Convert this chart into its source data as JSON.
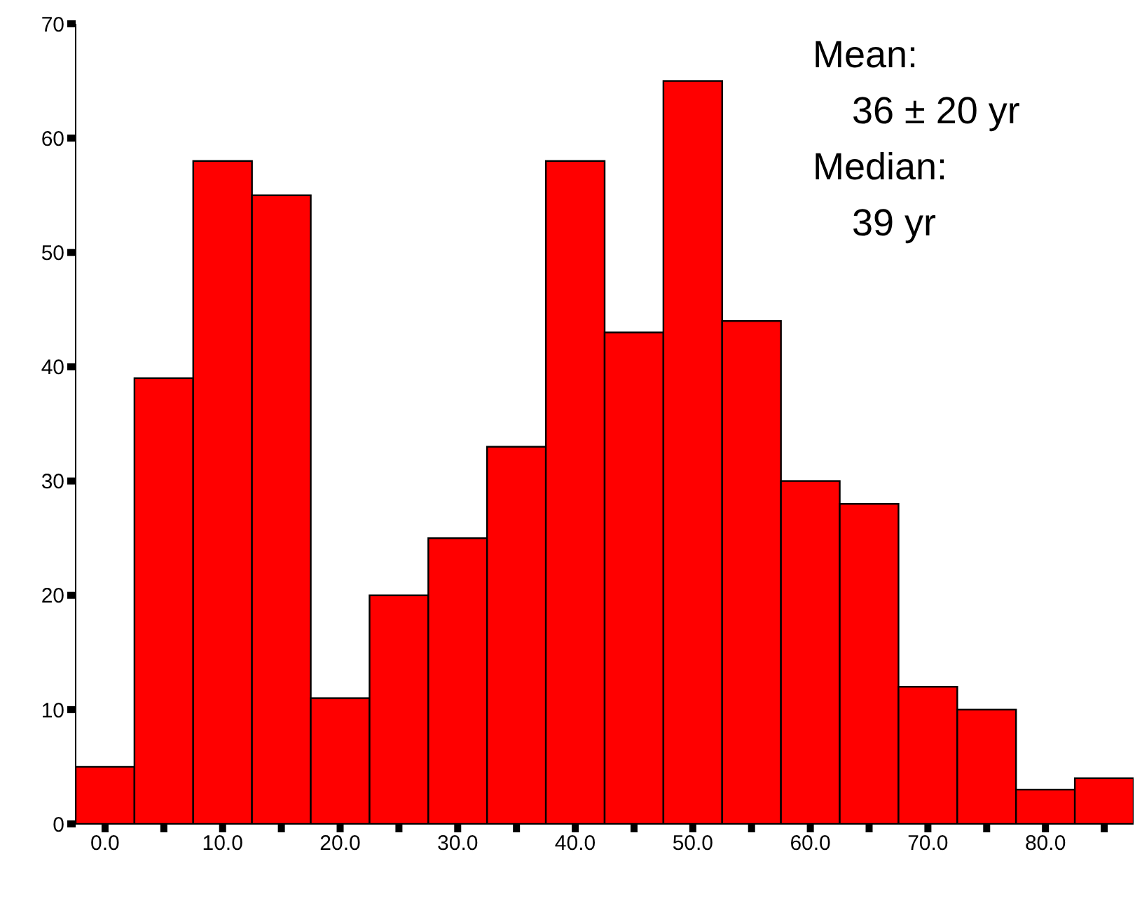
{
  "chart_data": {
    "type": "histogram",
    "bins": [
      -2.5,
      2.5,
      7.5,
      12.5,
      17.5,
      22.5,
      27.5,
      32.5,
      37.5,
      42.5,
      47.5,
      52.5,
      57.5,
      62.5,
      67.5,
      72.5,
      77.5,
      82.5,
      87.5
    ],
    "values": [
      5,
      39,
      58,
      55,
      11,
      20,
      25,
      33,
      58,
      43,
      65,
      44,
      30,
      28,
      12,
      10,
      3,
      4
    ],
    "color": "#ff0000",
    "xlim": [
      -2.5,
      87.5
    ],
    "xticks": [
      {
        "value": 0,
        "label": "0.0"
      },
      {
        "value": 5,
        "label": null
      },
      {
        "value": 10,
        "label": "10.0"
      },
      {
        "value": 15,
        "label": null
      },
      {
        "value": 20,
        "label": "20.0"
      },
      {
        "value": 25,
        "label": null
      },
      {
        "value": 30,
        "label": "30.0"
      },
      {
        "value": 35,
        "label": null
      },
      {
        "value": 40,
        "label": "40.0"
      },
      {
        "value": 45,
        "label": null
      },
      {
        "value": 50,
        "label": "50.0"
      },
      {
        "value": 55,
        "label": null
      },
      {
        "value": 60,
        "label": "60.0"
      },
      {
        "value": 65,
        "label": null
      },
      {
        "value": 70,
        "label": "70.0"
      },
      {
        "value": 75,
        "label": null
      },
      {
        "value": 80,
        "label": "80.0"
      },
      {
        "value": 85,
        "label": null
      }
    ],
    "ylim": [
      0,
      70
    ],
    "yticks": [
      0,
      10,
      20,
      30,
      40,
      50,
      60,
      70
    ],
    "grid": false,
    "annotations": [
      "Mean:",
      "36 ± 20 yr",
      "Median:",
      "39 yr"
    ]
  }
}
